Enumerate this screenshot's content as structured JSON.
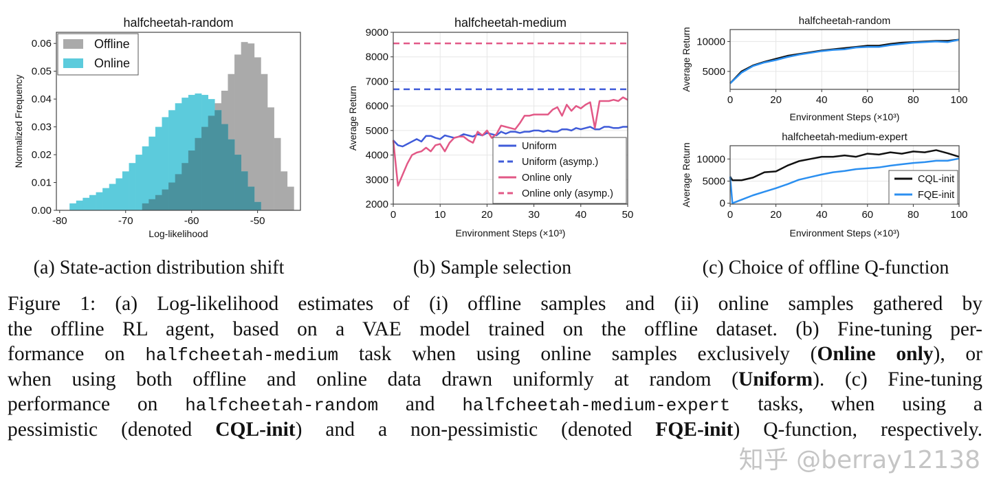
{
  "subcaptions": [
    "(a) State-action distribution shift",
    "(b) Sample selection",
    "(c) Choice of offline Q-function"
  ],
  "caption": {
    "lines": [
      [
        {
          "text": "Figure 1: (a) Log-likelihood estimates of (i) offline samples and (ii) online samples gathered by"
        }
      ],
      [
        {
          "text": "the offline RL agent, based on a VAE model trained on the offline dataset. (b) Fine-tuning per-"
        }
      ],
      [
        {
          "text": "formance on "
        },
        {
          "text": "halfcheetah-medium"
        },
        {
          "text": " task when using online samples exclusively ("
        },
        {
          "text": "Online only"
        },
        {
          "text": "), or"
        }
      ],
      [
        {
          "text": "when using both offline and online data drawn uniformly at random ("
        },
        {
          "text": "Uniform"
        },
        {
          "text": "). (c) Fine-tuning"
        }
      ],
      [
        {
          "text": "performance on "
        },
        {
          "text": "halfcheetah-random"
        },
        {
          "text": " and "
        },
        {
          "text": "halfcheetah-medium-expert"
        },
        {
          "text": " tasks, when using a"
        }
      ],
      [
        {
          "text": "pessimistic (denoted "
        },
        {
          "text": "CQL-init"
        },
        {
          "text": ") and a non-pessimistic (denoted "
        },
        {
          "text": "FQE-init"
        },
        {
          "text": ") Q-function, respectively."
        }
      ]
    ]
  },
  "watermark": "知乎 @berray12138",
  "chart_data": [
    {
      "type": "bar",
      "title": "halfcheetah-random",
      "xlabel": "Log-likelihood",
      "ylabel": "Normalized Frequency",
      "xlim": [
        -80.5,
        -43.5
      ],
      "ylim": [
        0,
        0.064
      ],
      "xticks": [
        -80,
        -70,
        -60,
        -50
      ],
      "yticks": [
        0.0,
        0.01,
        0.02,
        0.03,
        0.04,
        0.05,
        0.06
      ],
      "ytick_labels": [
        "0.00",
        "0.01",
        "0.02",
        "0.03",
        "0.04",
        "0.05",
        "0.06"
      ],
      "grid": false,
      "legend": "top-left",
      "bin_width": 1,
      "series": [
        {
          "name": "Offline",
          "color": "#aaaaaa",
          "x": [
            -67,
            -66,
            -65,
            -64,
            -63,
            -62,
            -61,
            -60,
            -59,
            -58,
            -57,
            -56,
            -55,
            -54,
            -53,
            -52,
            -51,
            -50,
            -49,
            -48,
            -47,
            -46,
            -45
          ],
          "values": [
            0.0025,
            0.004,
            0.0055,
            0.0075,
            0.01,
            0.013,
            0.017,
            0.0215,
            0.026,
            0.03,
            0.034,
            0.0385,
            0.043,
            0.049,
            0.056,
            0.0605,
            0.06,
            0.055,
            0.049,
            0.037,
            0.026,
            0.014,
            0.0085
          ]
        },
        {
          "name": "Online",
          "color": "#5ccbdc",
          "x": [
            -78,
            -77,
            -76,
            -75,
            -74,
            -73,
            -72,
            -71,
            -70,
            -69,
            -68,
            -67,
            -66,
            -65,
            -64,
            -63,
            -62,
            -61,
            -60,
            -59,
            -58,
            -57,
            -56,
            -55,
            -54,
            -53,
            -52,
            -51,
            -50
          ],
          "values": [
            0.0025,
            0.0035,
            0.0045,
            0.0055,
            0.0065,
            0.008,
            0.0095,
            0.0115,
            0.014,
            0.017,
            0.02,
            0.023,
            0.0265,
            0.03,
            0.0335,
            0.036,
            0.0385,
            0.0405,
            0.0415,
            0.042,
            0.0415,
            0.04,
            0.036,
            0.031,
            0.0255,
            0.02,
            0.014,
            0.0085,
            0.003
          ]
        }
      ],
      "overlap_color": "#4a929e"
    },
    {
      "type": "line",
      "title": "halfcheetah-medium",
      "xlabel": "Environment Steps (×10³)",
      "ylabel": "Average Return",
      "xlim": [
        0,
        50
      ],
      "ylim": [
        2000,
        9000
      ],
      "xticks": [
        0,
        10,
        20,
        30,
        40,
        50
      ],
      "yticks": [
        2000,
        3000,
        4000,
        5000,
        6000,
        7000,
        8000,
        9000
      ],
      "grid": true,
      "legend": "bottom-right",
      "series": [
        {
          "name": "Uniform",
          "color": "#3f5bd9",
          "dash": false,
          "values": [
            4600,
            4400,
            4350,
            4450,
            4550,
            4650,
            4550,
            4780,
            4780,
            4700,
            4650,
            4800,
            4750,
            4700,
            4750,
            4850,
            4800,
            4750,
            4850,
            4800,
            4900,
            4850,
            4800,
            4950,
            4870,
            4950,
            4950,
            4900,
            4950,
            4950,
            5000,
            5000,
            4950,
            5000,
            4950,
            4950,
            5050,
            5050,
            5000,
            5100,
            5050,
            5100,
            5150,
            5050,
            5050,
            5150,
            5150,
            5100,
            5100,
            5150,
            5150
          ]
        },
        {
          "name": "Uniform (asymp.)",
          "color": "#3f5bd9",
          "dash": true,
          "constant": 6680
        },
        {
          "name": "Online only",
          "color": "#e25886",
          "dash": false,
          "values": [
            4600,
            2750,
            3200,
            3650,
            4000,
            4100,
            4150,
            4300,
            4150,
            4400,
            4450,
            4150,
            4500,
            4700,
            4750,
            4750,
            4600,
            4500,
            4950,
            4800,
            5000,
            4700,
            4850,
            5200,
            5150,
            5100,
            5050,
            5300,
            5600,
            5600,
            5650,
            5650,
            5650,
            5650,
            5850,
            5950,
            5600,
            6050,
            5800,
            6000,
            5900,
            6050,
            6150,
            5100,
            6200,
            6200,
            6200,
            6250,
            6200,
            6350,
            6250
          ]
        },
        {
          "name": "Online only (asymp.)",
          "color": "#e25886",
          "dash": true,
          "constant": 8550
        }
      ]
    },
    {
      "type": "line",
      "title": "halfcheetah-random",
      "xlabel": "Environment Steps (×10³)",
      "ylabel": "Average Return",
      "xlim": [
        0,
        100
      ],
      "ylim": [
        2000,
        12000
      ],
      "xticks": [
        0,
        20,
        40,
        60,
        80,
        100
      ],
      "yticks": [
        5000,
        10000
      ],
      "grid": true,
      "x": [
        0,
        5,
        10,
        15,
        20,
        25,
        30,
        35,
        40,
        45,
        50,
        55,
        60,
        65,
        70,
        75,
        80,
        85,
        90,
        95,
        100
      ],
      "series": [
        {
          "name": "CQL-init",
          "color": "#111111",
          "values": [
            3000,
            5000,
            6000,
            6600,
            7100,
            7600,
            7900,
            8200,
            8500,
            8700,
            8900,
            9100,
            9300,
            9300,
            9600,
            9800,
            9900,
            10000,
            10100,
            10100,
            10300
          ]
        },
        {
          "name": "FQE-init",
          "color": "#2b8ff0",
          "values": [
            3000,
            4800,
            5900,
            6500,
            6900,
            7400,
            7800,
            8100,
            8400,
            8600,
            8700,
            9000,
            9100,
            9100,
            9400,
            9600,
            9800,
            9900,
            10000,
            9900,
            10300
          ]
        }
      ]
    },
    {
      "type": "line",
      "title": "halfcheetah-medium-expert",
      "xlabel": "Environment Steps (×10³)",
      "ylabel": "Average Return",
      "xlim": [
        0,
        100
      ],
      "ylim": [
        -200,
        13000
      ],
      "xticks": [
        0,
        20,
        40,
        60,
        80,
        100
      ],
      "yticks": [
        0,
        5000,
        10000
      ],
      "grid": true,
      "legend": "bottom-right",
      "x": [
        0,
        1,
        5,
        10,
        15,
        20,
        25,
        30,
        35,
        40,
        45,
        50,
        55,
        60,
        65,
        70,
        75,
        80,
        85,
        90,
        95,
        100
      ],
      "series": [
        {
          "name": "CQL-init",
          "color": "#111111",
          "values": [
            6000,
            5200,
            5200,
            5800,
            7000,
            7200,
            8500,
            9500,
            10000,
            10500,
            10500,
            10800,
            10500,
            11200,
            11000,
            11500,
            11200,
            11700,
            11500,
            12000,
            11300,
            10500
          ]
        },
        {
          "name": "FQE-init",
          "color": "#2b8ff0",
          "values": [
            6000,
            0,
            800,
            1800,
            2600,
            3400,
            4300,
            5300,
            5900,
            6500,
            7000,
            7300,
            7700,
            7900,
            8100,
            8500,
            8800,
            9100,
            9300,
            9600,
            9600,
            10100
          ]
        }
      ]
    }
  ]
}
